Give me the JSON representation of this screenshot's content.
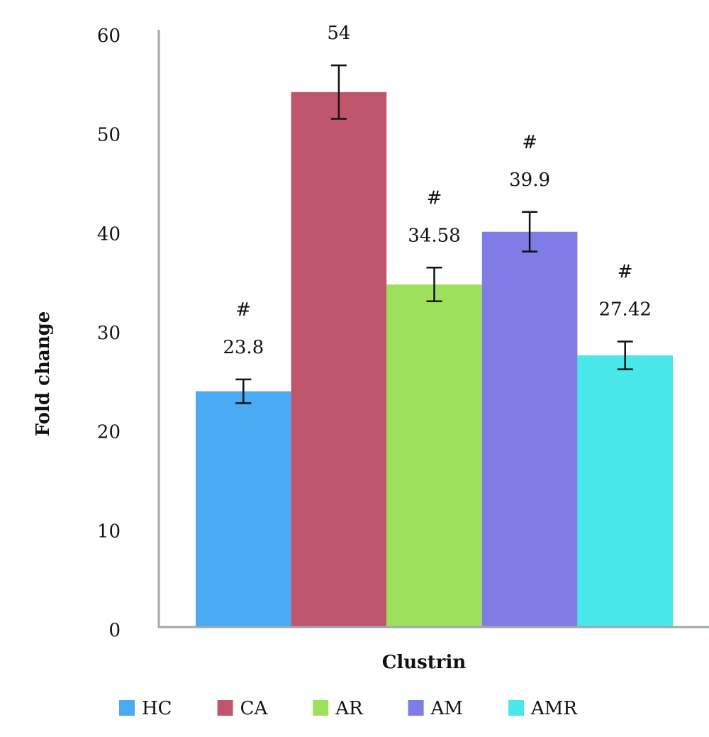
{
  "chart_data": {
    "type": "bar",
    "categories": [
      "Clustrin"
    ],
    "ylabel": "Fold change",
    "ylim": [
      0,
      60
    ],
    "yticks": [
      0,
      10,
      20,
      30,
      40,
      50,
      60
    ],
    "legend": "bottom",
    "series": [
      {
        "name": "HC",
        "color": "#4aabf4",
        "values": [
          23.8
        ],
        "errors": [
          1.2
        ],
        "annotation": "#"
      },
      {
        "name": "CA",
        "color": "#c0566b",
        "values": [
          54
        ],
        "errors": [
          2.7
        ]
      },
      {
        "name": "AR",
        "color": "#9ee05c",
        "values": [
          34.58
        ],
        "errors": [
          1.7
        ],
        "annotation": "#"
      },
      {
        "name": "AM",
        "color": "#7f7ce6",
        "values": [
          39.9
        ],
        "errors": [
          2.0
        ],
        "annotation": "#"
      },
      {
        "name": "AMR",
        "color": "#4ae8ea",
        "values": [
          27.42
        ],
        "errors": [
          1.4
        ],
        "annotation": "#"
      }
    ]
  }
}
